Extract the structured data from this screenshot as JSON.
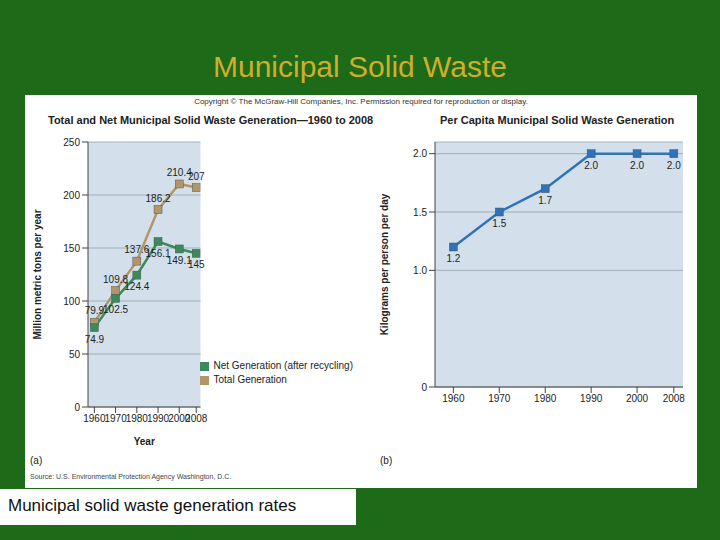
{
  "slide": {
    "title": "Municipal Solid Waste",
    "caption": "Municipal solid waste generation rates",
    "copyright": "Copyright © The McGraw-Hill Companies, Inc. Permission required for reproduction or display.",
    "source": "Source: U.S. Environmental Protection Agency Washington, D.C."
  },
  "chart_data": [
    {
      "type": "line",
      "title": "Total and Net Municipal Solid Waste Generation—1960 to 2008",
      "x_label": "Year",
      "y_label": "Million metric tons per year",
      "annotations": [
        "(a)"
      ],
      "x": [
        1960,
        1970,
        1980,
        1990,
        2000,
        2008
      ],
      "xlim": [
        1957,
        2010
      ],
      "xticks": [
        1960,
        1970,
        1980,
        1990,
        2000,
        2008
      ],
      "ylim": [
        0,
        250
      ],
      "yticks": [
        0,
        50,
        100,
        150,
        200,
        250
      ],
      "grid": true,
      "legend": "lower right",
      "data_labels": true,
      "marker": "square",
      "series": [
        {
          "name": "Total Generation",
          "color": "#b3956a",
          "values": [
            79.9,
            109.8,
            137.6,
            186.2,
            210.4,
            207
          ]
        },
        {
          "name": "Net Generation (after recycling)",
          "color": "#3c8a5c",
          "values": [
            74.9,
            102.5,
            124.4,
            156.1,
            149.1,
            145
          ]
        }
      ]
    },
    {
      "type": "line",
      "title": "Per Capita Municipal Solid Waste Generation",
      "y_label": "Kilograms per person per day",
      "annotations": [
        "(b)"
      ],
      "x": [
        1960,
        1970,
        1980,
        1990,
        2000,
        2008
      ],
      "xlim": [
        1956,
        2010
      ],
      "xticks": [
        1960,
        1970,
        1980,
        1990,
        2000,
        2008
      ],
      "ylim": [
        0,
        2.1
      ],
      "yticks": [
        0,
        {
          "value": 1,
          "label": "1.0"
        },
        1.5,
        {
          "value": 2,
          "label": "2.0"
        }
      ],
      "grid": true,
      "data_labels": true,
      "marker": "square",
      "color": "#2e72b8",
      "values": [
        1.2,
        1.5,
        1.7,
        2.0,
        2.0,
        2.0
      ],
      "value_labels": [
        "1.2",
        "1.5",
        "1.7",
        "2.0",
        "2.0",
        "2.0"
      ]
    }
  ]
}
